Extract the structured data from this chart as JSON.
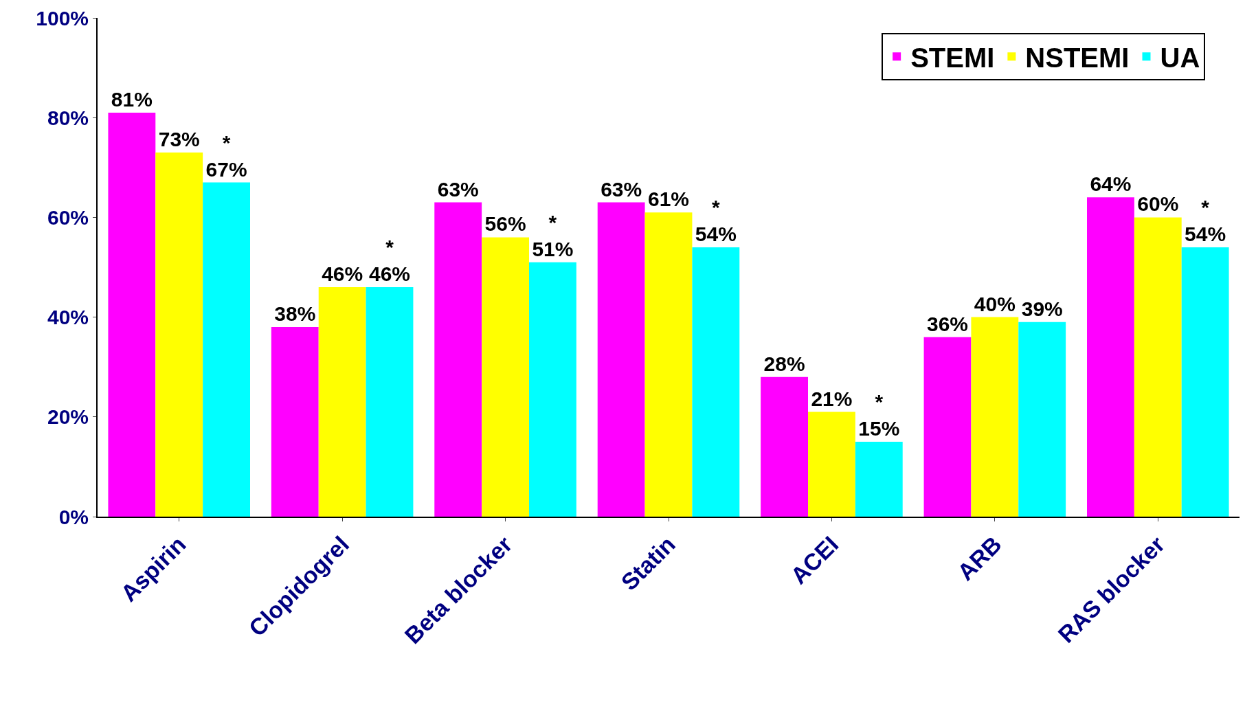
{
  "chart_data": {
    "type": "bar",
    "categories": [
      "Aspirin",
      "Clopidogrel",
      "Beta blocker",
      "Statin",
      "ACEI",
      "ARB",
      "RAS blocker"
    ],
    "series": [
      {
        "name": "STEMI",
        "color": "#ff00ff",
        "values": [
          81,
          38,
          63,
          63,
          28,
          36,
          64
        ],
        "value_labels": [
          "81%",
          "38%",
          "63%",
          "63%",
          "28%",
          "36%",
          "64%"
        ]
      },
      {
        "name": "NSTEMI",
        "color": "#ffff00",
        "values": [
          73,
          46,
          56,
          61,
          21,
          40,
          60
        ],
        "value_labels": [
          "73%",
          "46%",
          "56%",
          "61%",
          "21%",
          "40%",
          "60%"
        ]
      },
      {
        "name": "UA",
        "color": "#00ffff",
        "values": [
          67,
          46,
          51,
          54,
          15,
          39,
          54
        ],
        "value_labels": [
          "*\n67%",
          "*\n46%",
          "*\n51%",
          "*\n54%",
          "*\n15%",
          "39%",
          "*\n54%"
        ]
      }
    ],
    "ylim": [
      0,
      100
    ],
    "yticks": [
      {
        "value": 0,
        "label": "0%"
      },
      {
        "value": 20,
        "label": "20%"
      },
      {
        "value": 40,
        "label": "40%"
      },
      {
        "value": 60,
        "label": "60%"
      },
      {
        "value": 80,
        "label": "80%"
      },
      {
        "value": 100,
        "label": "100%"
      }
    ],
    "legend": "top right"
  }
}
